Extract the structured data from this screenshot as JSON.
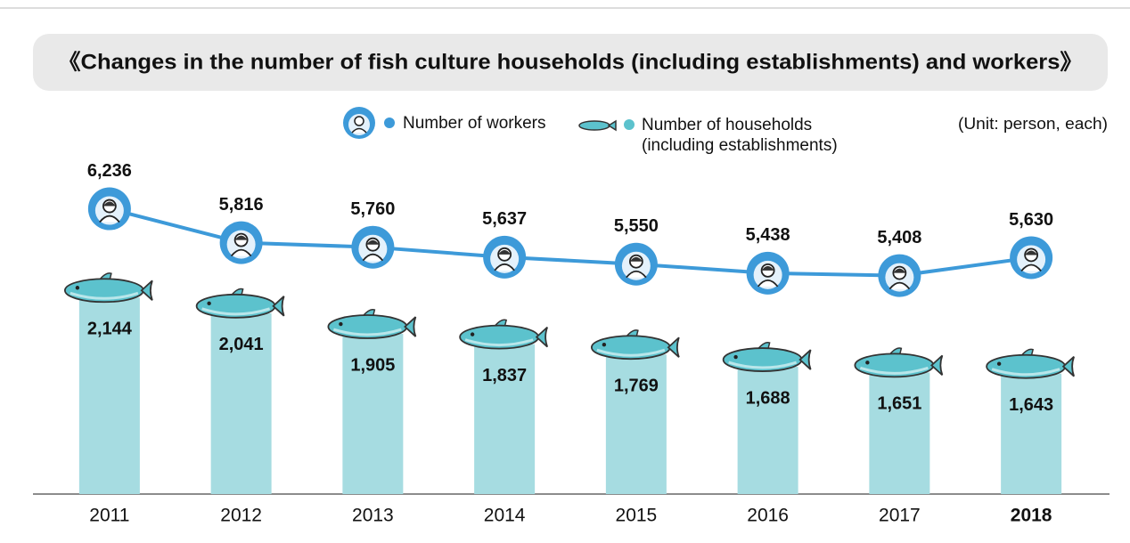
{
  "chart_data": {
    "type": "bar",
    "title": "《Changes in the number of fish culture households (including establishments) and workers》",
    "unit_note": "(Unit: person, each)",
    "categories": [
      "2011",
      "2012",
      "2013",
      "2014",
      "2015",
      "2016",
      "2017",
      "2018"
    ],
    "series": [
      {
        "name": "Number of workers",
        "type": "line",
        "axis": "y2",
        "color": "#3d9ad9",
        "values": [
          6236,
          5816,
          5760,
          5637,
          5550,
          5438,
          5408,
          5630
        ],
        "value_labels": [
          "6,236",
          "5,816",
          "5,760",
          "5,637",
          "5,550",
          "5,438",
          "5,408",
          "5,630"
        ]
      },
      {
        "name": "Number of households (including establishments)",
        "type": "bar",
        "color": "#5cc2cd",
        "values": [
          2144,
          2041,
          1905,
          1837,
          1769,
          1688,
          1651,
          1643
        ],
        "value_labels": [
          "2,144",
          "2,041",
          "1,905",
          "1,837",
          "1,769",
          "1,688",
          "1,651",
          "1,643"
        ]
      }
    ],
    "ylim": [
      850,
      3400
    ],
    "y2lim": [
      2700,
      7500
    ]
  }
}
